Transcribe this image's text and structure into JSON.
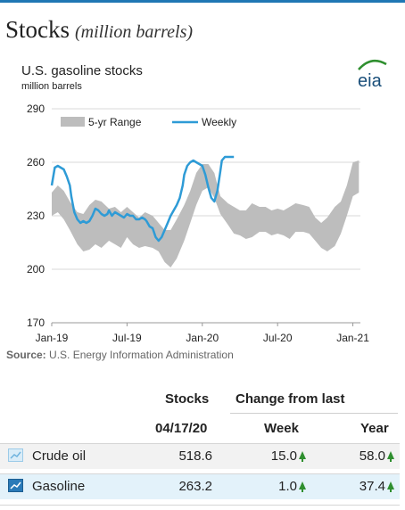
{
  "header": {
    "title": "Stocks",
    "unit": "(million barrels)"
  },
  "chart_data": {
    "type": "line",
    "title": "U.S. gasoline stocks",
    "subtitle": "million  barrels",
    "source_prefix": "Source:",
    "source": " U.S. Energy Information Administration",
    "logo_text": "eia",
    "ylim": [
      170,
      290
    ],
    "yticks": [
      170,
      200,
      230,
      260,
      290
    ],
    "xlim": [
      0,
      2.05
    ],
    "xticks": [
      {
        "label": "Jan-19",
        "x": 0
      },
      {
        "label": "Jul-19",
        "x": 0.5
      },
      {
        "label": "Jan-20",
        "x": 1.0
      },
      {
        "label": "Jul-20",
        "x": 1.5
      },
      {
        "label": "Jan-21",
        "x": 2.0
      }
    ],
    "legend": {
      "position": "top-left",
      "range_label": "5-yr Range",
      "weekly_label": "Weekly"
    },
    "range": {
      "name": "5-yr Range",
      "x": [
        0,
        0.04,
        0.08,
        0.12,
        0.17,
        0.21,
        0.25,
        0.29,
        0.33,
        0.38,
        0.42,
        0.46,
        0.5,
        0.54,
        0.58,
        0.62,
        0.67,
        0.71,
        0.75,
        0.79,
        0.83,
        0.88,
        0.92,
        0.96,
        1.0,
        1.04,
        1.08,
        1.12,
        1.17,
        1.21,
        1.25,
        1.29,
        1.33,
        1.38,
        1.42,
        1.46,
        1.5,
        1.54,
        1.58,
        1.62,
        1.67,
        1.71,
        1.75,
        1.79,
        1.83,
        1.88,
        1.92,
        1.96,
        2.0,
        2.04
      ],
      "low": [
        230,
        232,
        228,
        222,
        214,
        210,
        211,
        214,
        212,
        216,
        214,
        212,
        218,
        214,
        212,
        213,
        212,
        210,
        204,
        201,
        206,
        216,
        226,
        236,
        244,
        246,
        240,
        231,
        225,
        220,
        219,
        217,
        218,
        221,
        221,
        219,
        220,
        219,
        217,
        221,
        221,
        220,
        216,
        212,
        210,
        213,
        220,
        230,
        241,
        243
      ],
      "high": [
        243,
        247,
        244,
        238,
        232,
        231,
        236,
        239,
        238,
        234,
        235,
        232,
        235,
        232,
        229,
        232,
        230,
        226,
        222,
        222,
        228,
        236,
        244,
        254,
        259,
        259,
        254,
        241,
        237,
        235,
        233,
        233,
        237,
        235,
        235,
        233,
        234,
        233,
        235,
        237,
        236,
        235,
        229,
        226,
        229,
        235,
        238,
        247,
        260,
        261
      ]
    },
    "series": [
      {
        "name": "Weekly",
        "color": "#2e9bd6",
        "x": [
          0,
          0.02,
          0.04,
          0.06,
          0.08,
          0.1,
          0.12,
          0.13,
          0.15,
          0.17,
          0.19,
          0.21,
          0.23,
          0.25,
          0.27,
          0.29,
          0.31,
          0.33,
          0.35,
          0.37,
          0.38,
          0.4,
          0.42,
          0.44,
          0.46,
          0.48,
          0.5,
          0.52,
          0.54,
          0.56,
          0.58,
          0.6,
          0.62,
          0.63,
          0.65,
          0.67,
          0.69,
          0.71,
          0.73,
          0.75,
          0.77,
          0.79,
          0.81,
          0.83,
          0.85,
          0.87,
          0.88,
          0.9,
          0.92,
          0.94,
          0.96,
          0.98,
          1.0,
          1.02,
          1.04,
          1.06,
          1.08,
          1.1,
          1.12,
          1.13,
          1.15,
          1.17,
          1.19,
          1.21
        ],
        "values": [
          247,
          257,
          258,
          257,
          256,
          252,
          247,
          241,
          232,
          228,
          226,
          227,
          226,
          227,
          230,
          234,
          233,
          231,
          230,
          231,
          233,
          230,
          232,
          231,
          230,
          229,
          231,
          230,
          230,
          228,
          228,
          229,
          228,
          227,
          224,
          223,
          218,
          216,
          218,
          222,
          226,
          230,
          233,
          236,
          240,
          247,
          253,
          258,
          260,
          261,
          260,
          259,
          258,
          253,
          246,
          240,
          238,
          244,
          255,
          261,
          263,
          263,
          263,
          263
        ]
      }
    ]
  },
  "table": {
    "col_stocks": "Stocks",
    "col_change": "Change from last",
    "date": "04/17/20",
    "col_week": "Week",
    "col_year": "Year",
    "rows": [
      {
        "label": "Crude oil",
        "stocks": "518.6",
        "week": "15.0",
        "year": "58.0"
      },
      {
        "label": "Gasoline",
        "stocks": "263.2",
        "week": "1.0",
        "year": "37.4"
      }
    ]
  },
  "colors": {
    "accent": "#1f77b4",
    "weekly": "#2e9bd6",
    "range": "#bdbdbd",
    "up_arrow": "#2f8f2f",
    "icon": "#2a7ab8"
  }
}
